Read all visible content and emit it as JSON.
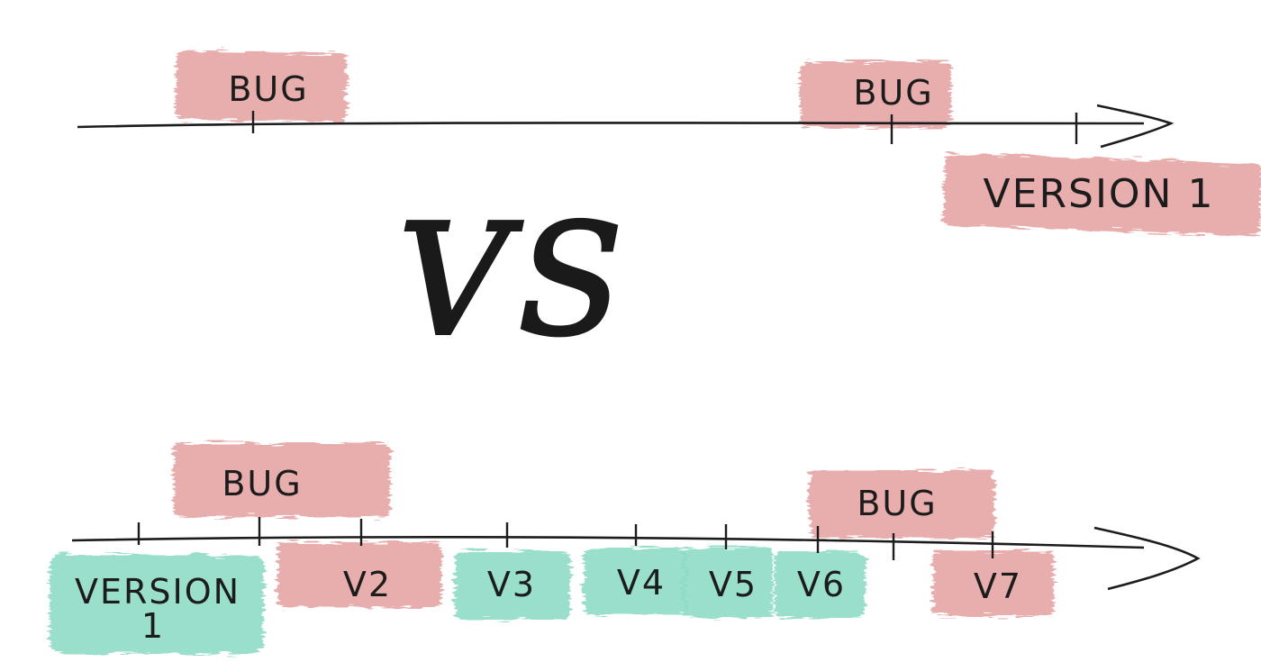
{
  "colors": {
    "bug": "#e6a6a6",
    "good": "#8fdcc6",
    "ink": "#1c1c1c"
  },
  "top": {
    "bugs": [
      "BUG",
      "BUG"
    ],
    "release_label": "VERSION 1"
  },
  "separator": "VS",
  "bottom": {
    "bugs": [
      "BUG",
      "BUG"
    ],
    "first_version_line1": "VERSION",
    "first_version_line2": "1",
    "versions": [
      {
        "label": "V2",
        "status": "bug"
      },
      {
        "label": "V3",
        "status": "good"
      },
      {
        "label": "V4",
        "status": "good"
      },
      {
        "label": "V5",
        "status": "good"
      },
      {
        "label": "V6",
        "status": "good"
      },
      {
        "label": "V7",
        "status": "bug"
      }
    ]
  }
}
